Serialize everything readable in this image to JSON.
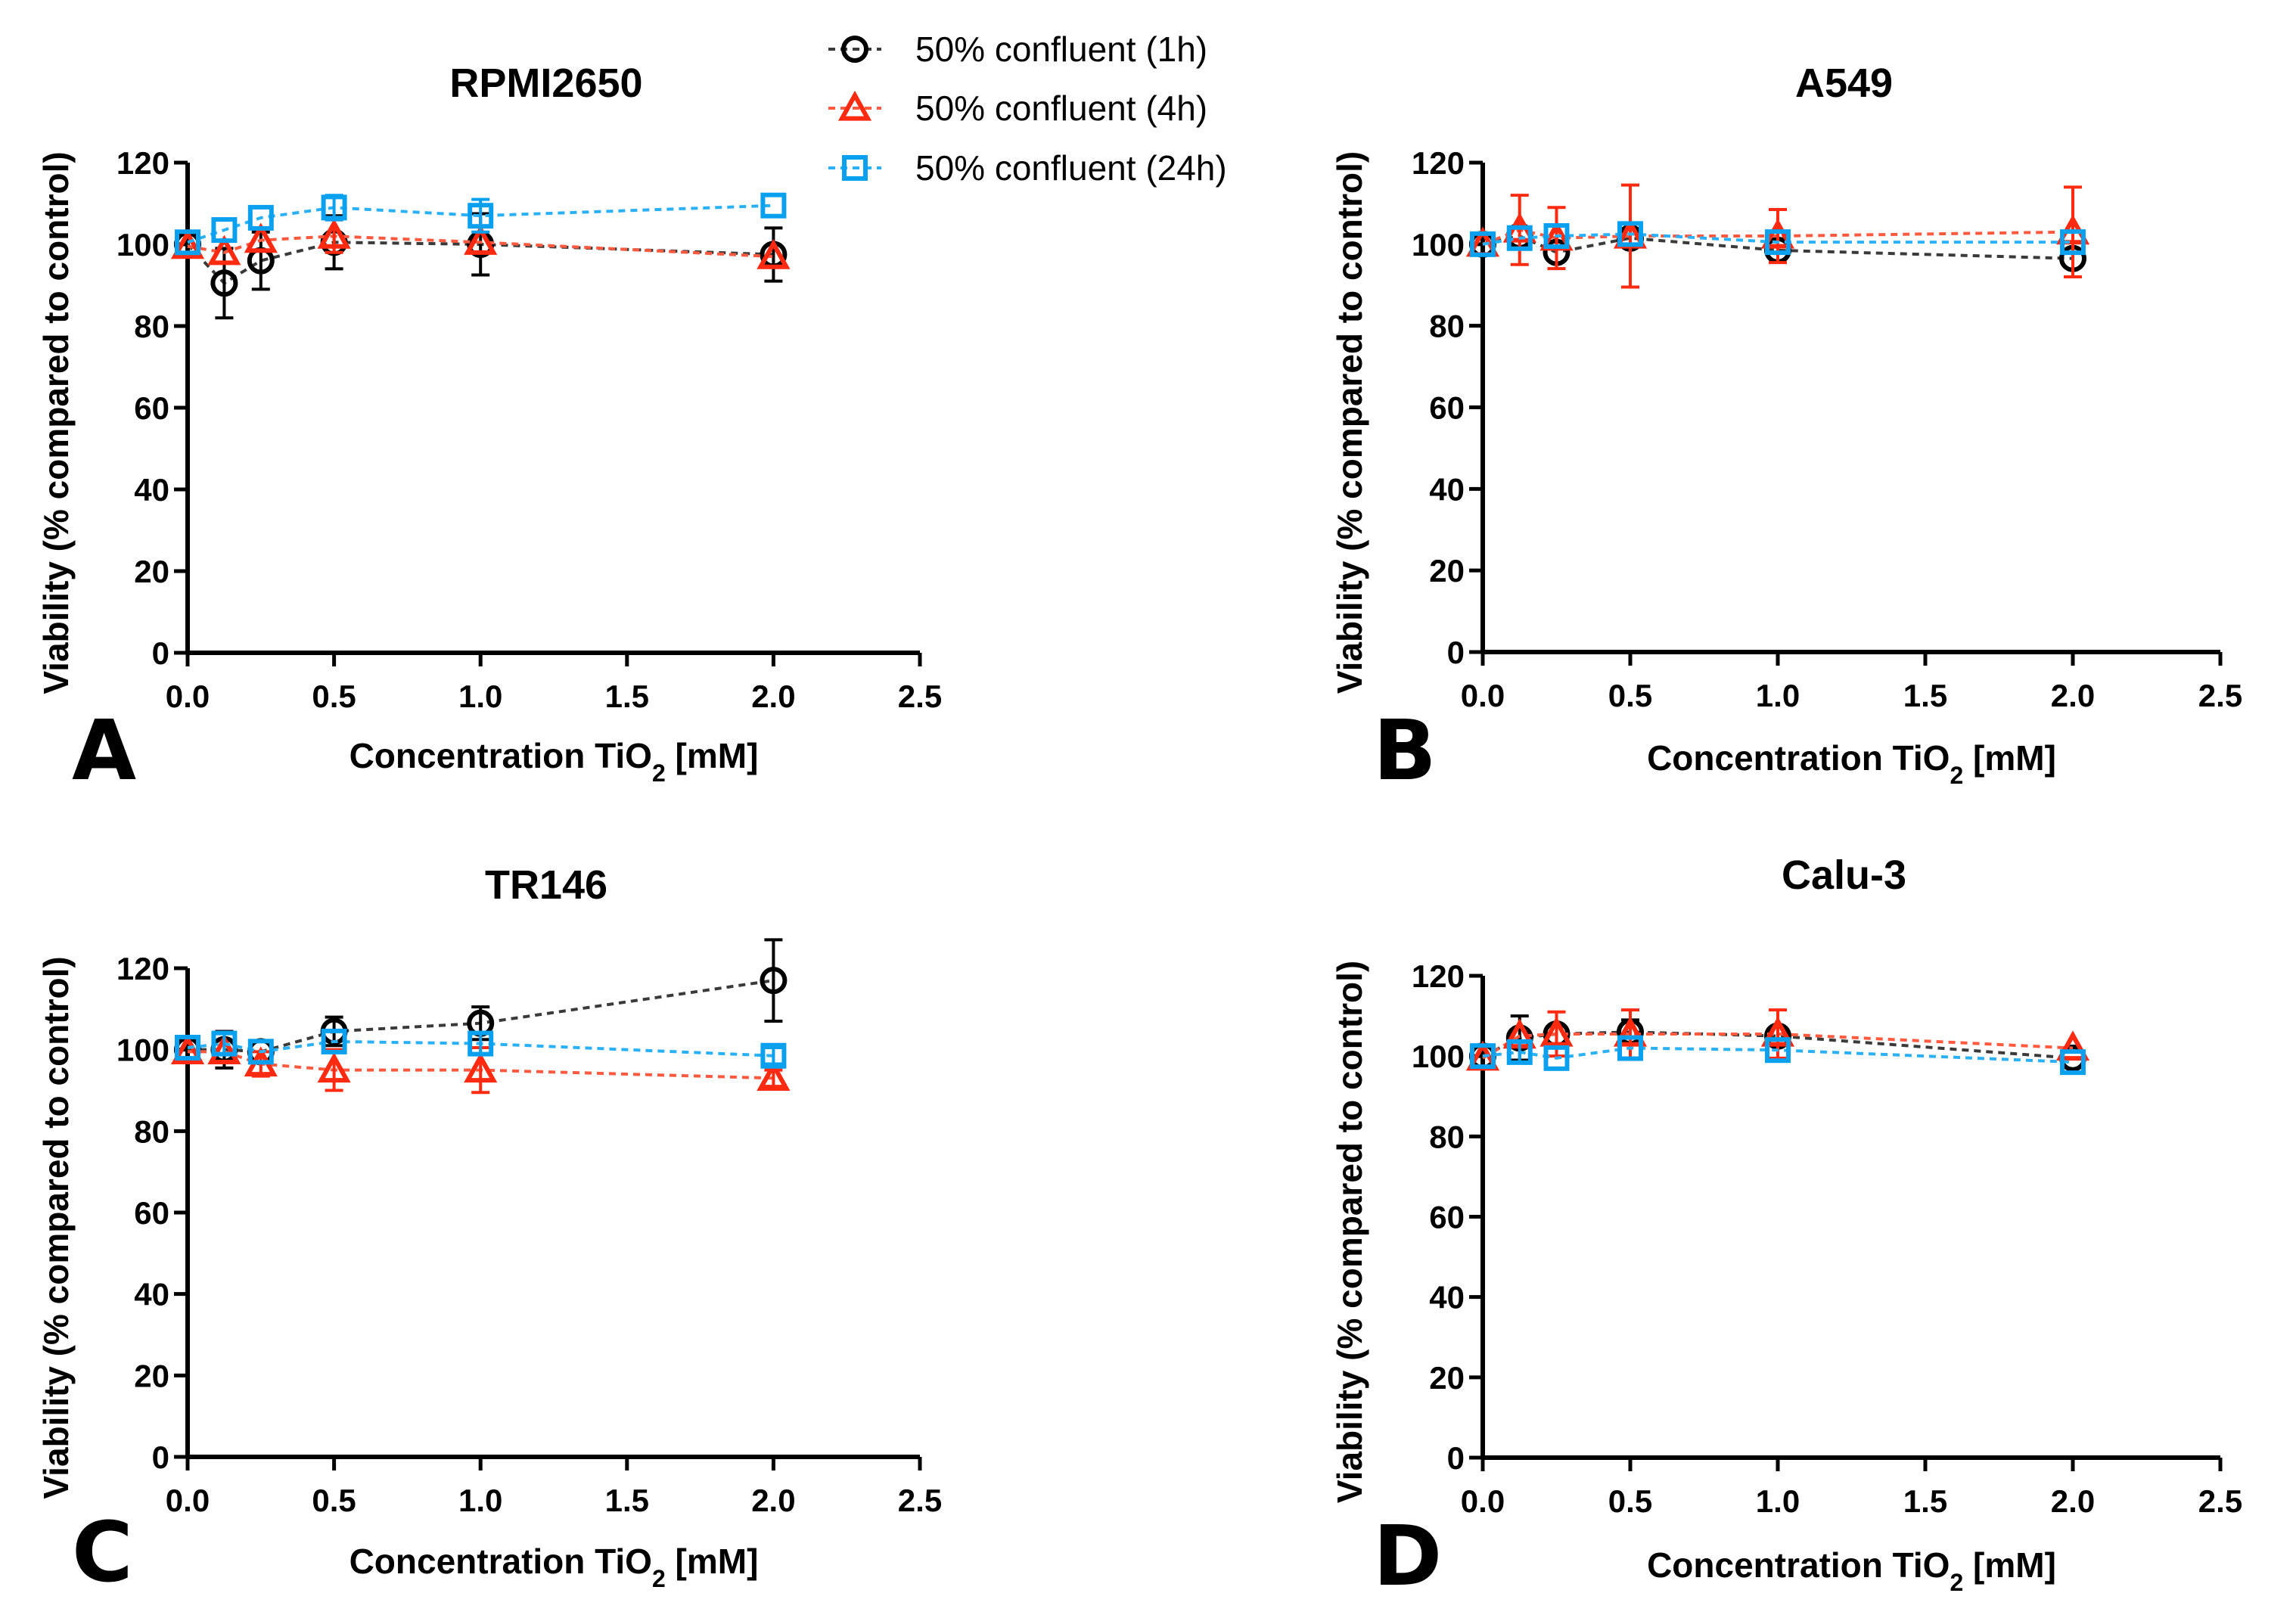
{
  "legend": {
    "items": [
      {
        "label": "50% confluent (1h)",
        "color": "#000000",
        "marker": "circle"
      },
      {
        "label": "50% confluent (4h)",
        "color": "#ff2a10",
        "marker": "triangle"
      },
      {
        "label": "50% confluent (24h)",
        "color": "#0aa0f0",
        "marker": "square"
      }
    ]
  },
  "chart_data": [
    {
      "panel": "A",
      "type": "line",
      "title": "RPMI2650",
      "xlabel": "Concentration TiO2 [mM]",
      "xlabel_main": "Concentration TiO",
      "xlabel_sub": "2",
      "xlabel_tail": " [mM]",
      "ylabel": "Viability (% compared to control)",
      "xlim": [
        0,
        2.5
      ],
      "ylim": [
        0,
        120
      ],
      "xticks": [
        "0.0",
        "0.5",
        "1.0",
        "1.5",
        "2.0",
        "2.5"
      ],
      "yticks": [
        "0",
        "20",
        "40",
        "60",
        "80",
        "100",
        "120"
      ],
      "x": [
        0,
        0.125,
        0.25,
        0.5,
        1.0,
        2.0
      ],
      "series": [
        {
          "name": "50% confluent (1h)",
          "values": [
            100,
            90.5,
            96,
            100.5,
            100,
            97.5
          ],
          "errors": [
            0,
            8.5,
            7,
            6.5,
            7.5,
            6.5
          ]
        },
        {
          "name": "50% confluent (4h)",
          "values": [
            99.5,
            98,
            101,
            102,
            100.5,
            97
          ],
          "errors": [
            0,
            0,
            0,
            4,
            0,
            0
          ]
        },
        {
          "name": "50% confluent (24h)",
          "values": [
            100.5,
            103.5,
            106.5,
            109,
            107,
            109.5
          ],
          "errors": [
            0,
            0,
            0,
            3,
            4,
            0
          ]
        }
      ]
    },
    {
      "panel": "B",
      "type": "line",
      "title": "A549",
      "xlabel": "Concentration TiO2 [mM]",
      "xlabel_main": "Concentration TiO",
      "xlabel_sub": "2",
      "xlabel_tail": " [mM]",
      "ylabel": "Viability (% compared to control)",
      "xlim": [
        0,
        2.5
      ],
      "ylim": [
        0,
        120
      ],
      "xticks": [
        "0.0",
        "0.5",
        "1.0",
        "1.5",
        "2.0",
        "2.5"
      ],
      "yticks": [
        "0",
        "20",
        "40",
        "60",
        "80",
        "100",
        "120"
      ],
      "x": [
        0,
        0.125,
        0.25,
        0.5,
        1.0,
        2.0
      ],
      "series": [
        {
          "name": "50% confluent (1h)",
          "values": [
            100,
            102,
            98,
            101.5,
            98.5,
            96.5
          ],
          "errors": [
            0,
            0,
            0,
            0,
            0,
            0
          ]
        },
        {
          "name": "50% confluent (4h)",
          "values": [
            100,
            103.5,
            101.5,
            102,
            102,
            103
          ],
          "errors": [
            0,
            8.5,
            7.5,
            12.5,
            6.5,
            11
          ]
        },
        {
          "name": "50% confluent (24h)",
          "values": [
            100,
            101.5,
            102,
            102.5,
            100.5,
            100.5
          ],
          "errors": [
            0,
            0,
            0,
            0,
            0,
            0
          ]
        }
      ]
    },
    {
      "panel": "C",
      "type": "line",
      "title": "TR146",
      "xlabel": "Concentration TiO2 [mM]",
      "xlabel_main": "Concentration TiO",
      "xlabel_sub": "2",
      "xlabel_tail": " [mM]",
      "ylabel": "Viability (% compared to control)",
      "xlim": [
        0,
        2.5
      ],
      "ylim": [
        0,
        120
      ],
      "xticks": [
        "0.0",
        "0.5",
        "1.0",
        "1.5",
        "2.0",
        "2.5"
      ],
      "yticks": [
        "0",
        "20",
        "40",
        "60",
        "80",
        "100",
        "120"
      ],
      "x": [
        0,
        0.125,
        0.25,
        0.5,
        1.0,
        2.0
      ],
      "series": [
        {
          "name": "50% confluent (1h)",
          "values": [
            100,
            100,
            99.5,
            104.5,
            106.5,
            117
          ],
          "errors": [
            0,
            4.5,
            0,
            3.5,
            4,
            10
          ]
        },
        {
          "name": "50% confluent (4h)",
          "values": [
            99.5,
            99.5,
            96.5,
            95,
            95,
            93
          ],
          "errors": [
            0,
            0,
            3,
            5,
            5.5,
            2
          ]
        },
        {
          "name": "50% confluent (24h)",
          "values": [
            100.5,
            101.5,
            99.5,
            102,
            101.5,
            98.5
          ],
          "errors": [
            0,
            2.5,
            0,
            0,
            2.5,
            2
          ]
        }
      ]
    },
    {
      "panel": "D",
      "type": "line",
      "title": "Calu-3",
      "xlabel": "Concentration TiO2 [mM]",
      "xlabel_main": "Concentration TiO",
      "xlabel_sub": "2",
      "xlabel_tail": " [mM]",
      "ylabel": "Viability (% compared to control)",
      "xlim": [
        0,
        2.5
      ],
      "ylim": [
        0,
        120
      ],
      "xticks": [
        "0.0",
        "0.5",
        "1.0",
        "1.5",
        "2.0",
        "2.5"
      ],
      "yticks": [
        "0",
        "20",
        "40",
        "60",
        "80",
        "100",
        "120"
      ],
      "x": [
        0,
        0.125,
        0.25,
        0.5,
        1.0,
        2.0
      ],
      "series": [
        {
          "name": "50% confluent (1h)",
          "values": [
            100,
            104.5,
            105.5,
            106,
            105,
            99.5
          ],
          "errors": [
            0,
            5.5,
            0,
            3,
            0,
            0
          ]
        },
        {
          "name": "50% confluent (4h)",
          "values": [
            99.5,
            105,
            105.5,
            105.5,
            105.5,
            102
          ],
          "errors": [
            0,
            0,
            5.5,
            6,
            6,
            0
          ]
        },
        {
          "name": "50% confluent (24h)",
          "values": [
            100,
            101,
            99.5,
            102,
            101.5,
            98.5
          ],
          "errors": [
            0,
            2.5,
            0,
            0,
            0,
            0
          ]
        }
      ]
    }
  ]
}
